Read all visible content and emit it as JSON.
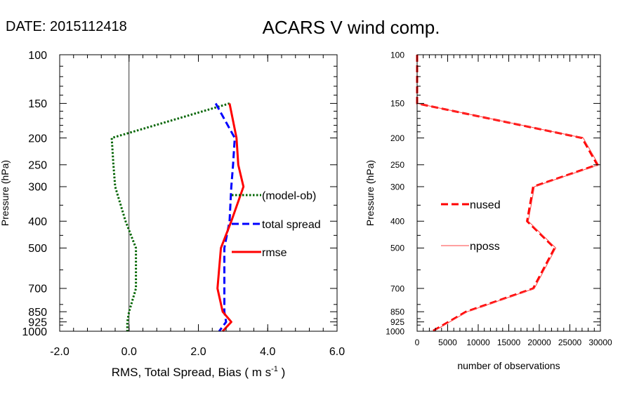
{
  "header": {
    "date_label": "DATE: 2015112418",
    "title": "ACARS V wind comp."
  },
  "colors": {
    "bias": "#006400",
    "spread": "#0000ff",
    "rmse": "#ff0000",
    "nposs": "#ff4040",
    "zero_line": "#000000"
  },
  "chart_data": [
    {
      "type": "line",
      "panel": "left",
      "xlabel": "RMS, Total Spread, Bias ( m s",
      "xlabel_sup": "-1",
      "xlabel_end": " )",
      "ylabel": "Pressure (hPa)",
      "xlim": [
        -2.0,
        6.0
      ],
      "xticks": [
        -2.0,
        0.0,
        2.0,
        4.0,
        6.0
      ],
      "xtick_labels": [
        "-2.0",
        "0.0",
        "2.0",
        "4.0",
        "6.0"
      ],
      "ylim": [
        1000,
        100
      ],
      "y_scale": "log",
      "yticks": [
        100,
        150,
        200,
        250,
        300,
        400,
        500,
        700,
        850,
        925,
        1000
      ],
      "ytick_labels": [
        "100",
        "150",
        "200",
        "250",
        "300",
        "400",
        "500",
        "700",
        "850",
        "925",
        "1000"
      ],
      "zero_line": true,
      "series": [
        {
          "name": "(model-ob)",
          "style": "dotted",
          "pressure": [
            150,
            200,
            250,
            300,
            400,
            500,
            700,
            850,
            925,
            1000
          ],
          "values": [
            2.9,
            -0.5,
            -0.45,
            -0.4,
            -0.1,
            0.2,
            0.2,
            0.0,
            -0.05,
            -0.05
          ]
        },
        {
          "name": "total spread",
          "style": "dashed",
          "pressure": [
            150,
            200,
            250,
            300,
            400,
            500,
            700,
            850,
            925,
            1000
          ],
          "values": [
            2.5,
            3.05,
            3.0,
            2.95,
            2.9,
            2.75,
            2.75,
            2.75,
            2.8,
            2.6
          ]
        },
        {
          "name": "rmse",
          "style": "solid",
          "pressure": [
            150,
            200,
            250,
            300,
            400,
            500,
            700,
            850,
            925,
            1000
          ],
          "values": [
            2.9,
            3.1,
            3.15,
            3.3,
            2.95,
            2.65,
            2.55,
            2.7,
            2.95,
            2.7
          ]
        }
      ]
    },
    {
      "type": "line",
      "panel": "right",
      "xlabel": "number of observations",
      "ylabel": "Pressure (hPa)",
      "xlim": [
        0,
        30000
      ],
      "xticks": [
        0,
        5000,
        10000,
        15000,
        20000,
        25000,
        30000
      ],
      "xtick_labels": [
        "0",
        "5000",
        "10000",
        "15000",
        "20000",
        "25000",
        "30000"
      ],
      "ylim": [
        1000,
        100
      ],
      "y_scale": "log",
      "yticks": [
        100,
        150,
        200,
        250,
        300,
        400,
        500,
        700,
        850,
        925,
        1000
      ],
      "ytick_labels": [
        "100",
        "150",
        "200",
        "250",
        "300",
        "400",
        "500",
        "700",
        "850",
        "925",
        "1000"
      ],
      "series": [
        {
          "name": "nused",
          "style": "dashed",
          "pressure": [
            100,
            150,
            200,
            250,
            300,
            400,
            500,
            700,
            850,
            1000
          ],
          "values": [
            0,
            0,
            27000,
            29500,
            19000,
            18000,
            22500,
            19000,
            8000,
            2500
          ]
        },
        {
          "name": "nposs",
          "style": "solid-thin",
          "pressure": [
            100,
            150,
            200,
            250,
            300,
            400,
            500,
            700,
            850,
            1000
          ],
          "values": [
            0,
            0,
            27200,
            29700,
            19200,
            18200,
            22700,
            19200,
            8200,
            2700
          ]
        }
      ]
    }
  ]
}
